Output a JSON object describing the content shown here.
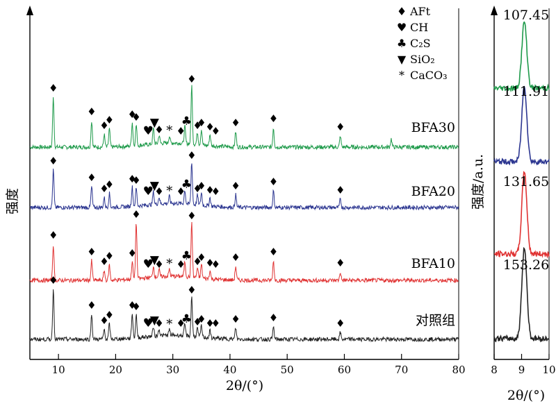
{
  "chart_data": [
    {
      "type": "line",
      "xlabel": "2θ/(°)",
      "ylabel": "强度",
      "xlim": [
        5,
        80
      ],
      "xticks": [
        "10",
        "20",
        "30",
        "40",
        "50",
        "60",
        "70",
        "80"
      ],
      "legend": {
        "placement": "top-right",
        "items": [
          {
            "symbol": "♦",
            "text": "AFt",
            "color": "#000000"
          },
          {
            "symbol": "♥",
            "text": "CH",
            "color": "#e8302c"
          },
          {
            "symbol": "♣",
            "text": "C₂S",
            "color": "#2a2a7a"
          },
          {
            "symbol": "▼",
            "text": "SiO₂",
            "color": "#b5187c"
          },
          {
            "symbol": "*",
            "text": "CaCO₃",
            "color": "#2ea82e"
          }
        ]
      },
      "series": [
        {
          "name": "BFA30",
          "color": "#1e9a4a",
          "peaks": [
            {
              "x": 9.1,
              "h": 72
            },
            {
              "x": 15.8,
              "h": 38
            },
            {
              "x": 18.0,
              "h": 18
            },
            {
              "x": 18.9,
              "h": 26
            },
            {
              "x": 22.9,
              "h": 34
            },
            {
              "x": 23.6,
              "h": 30
            },
            {
              "x": 26.6,
              "h": 22
            },
            {
              "x": 27.6,
              "h": 12
            },
            {
              "x": 29.4,
              "h": 10
            },
            {
              "x": 32.1,
              "h": 24
            },
            {
              "x": 33.3,
              "h": 85
            },
            {
              "x": 34.3,
              "h": 18
            },
            {
              "x": 35.0,
              "h": 22
            },
            {
              "x": 36.5,
              "h": 16
            },
            {
              "x": 41.0,
              "h": 22
            },
            {
              "x": 47.6,
              "h": 28
            },
            {
              "x": 59.3,
              "h": 16
            },
            {
              "x": 68.2,
              "h": 12
            }
          ]
        },
        {
          "name": "BFA20",
          "color": "#2b3590",
          "peaks": [
            {
              "x": 9.1,
              "h": 54
            },
            {
              "x": 15.8,
              "h": 30
            },
            {
              "x": 18.0,
              "h": 14
            },
            {
              "x": 18.9,
              "h": 20
            },
            {
              "x": 22.9,
              "h": 28
            },
            {
              "x": 23.6,
              "h": 26
            },
            {
              "x": 26.6,
              "h": 18
            },
            {
              "x": 27.6,
              "h": 10
            },
            {
              "x": 29.4,
              "h": 10
            },
            {
              "x": 32.1,
              "h": 20
            },
            {
              "x": 33.3,
              "h": 62
            },
            {
              "x": 34.3,
              "h": 14
            },
            {
              "x": 35.0,
              "h": 18
            },
            {
              "x": 36.5,
              "h": 12
            },
            {
              "x": 41.0,
              "h": 18
            },
            {
              "x": 47.6,
              "h": 24
            },
            {
              "x": 59.3,
              "h": 12
            }
          ]
        },
        {
          "name": "BFA10",
          "color": "#e03232",
          "peaks": [
            {
              "x": 9.1,
              "h": 52
            },
            {
              "x": 15.8,
              "h": 28
            },
            {
              "x": 18.0,
              "h": 14
            },
            {
              "x": 18.9,
              "h": 22
            },
            {
              "x": 22.9,
              "h": 26
            },
            {
              "x": 23.6,
              "h": 82
            },
            {
              "x": 26.6,
              "h": 16
            },
            {
              "x": 27.6,
              "h": 10
            },
            {
              "x": 29.4,
              "h": 10
            },
            {
              "x": 32.1,
              "h": 22
            },
            {
              "x": 33.3,
              "h": 80
            },
            {
              "x": 34.3,
              "h": 14
            },
            {
              "x": 35.0,
              "h": 20
            },
            {
              "x": 36.5,
              "h": 12
            },
            {
              "x": 41.0,
              "h": 20
            },
            {
              "x": 47.6,
              "h": 28
            },
            {
              "x": 59.3,
              "h": 12
            }
          ]
        },
        {
          "name": "对照组",
          "color": "#222222",
          "peaks": [
            {
              "x": 9.1,
              "h": 72
            },
            {
              "x": 15.8,
              "h": 36
            },
            {
              "x": 18.0,
              "h": 14
            },
            {
              "x": 18.9,
              "h": 22
            },
            {
              "x": 22.9,
              "h": 36
            },
            {
              "x": 23.6,
              "h": 34
            },
            {
              "x": 26.6,
              "h": 14
            },
            {
              "x": 27.6,
              "h": 10
            },
            {
              "x": 29.4,
              "h": 8
            },
            {
              "x": 32.1,
              "h": 16
            },
            {
              "x": 33.3,
              "h": 58
            },
            {
              "x": 34.3,
              "h": 12
            },
            {
              "x": 35.0,
              "h": 16
            },
            {
              "x": 36.5,
              "h": 10
            },
            {
              "x": 41.0,
              "h": 16
            },
            {
              "x": 47.6,
              "h": 18
            },
            {
              "x": 59.3,
              "h": 10
            }
          ]
        }
      ],
      "phase_markers": {
        "AFt": [
          9.1,
          15.8,
          18.0,
          18.9,
          22.9,
          23.6,
          27.6,
          31.4,
          33.3,
          34.3,
          35.0,
          36.5,
          37.5,
          41.0,
          47.6,
          59.3
        ],
        "CH": [
          25.7
        ],
        "C2S": [
          32.4
        ],
        "SiO2": [
          26.8
        ],
        "CaCO3": [
          29.4
        ]
      }
    },
    {
      "type": "line",
      "xlabel": "2θ/(°)",
      "ylabel": "强度/a.u.",
      "xlim": [
        8,
        10
      ],
      "xticks": [
        "8",
        "9",
        "10"
      ],
      "series": [
        {
          "name": "BFA30",
          "color": "#1e9a4a",
          "peak_x": 9.1,
          "annotation": "107.45"
        },
        {
          "name": "BFA20",
          "color": "#2b3590",
          "peak_x": 9.1,
          "annotation": "111.91"
        },
        {
          "name": "BFA10",
          "color": "#e03232",
          "peak_x": 9.1,
          "annotation": "131.65"
        },
        {
          "name": "对照组",
          "color": "#222222",
          "peak_x": 9.1,
          "annotation": "153.26"
        }
      ]
    }
  ]
}
